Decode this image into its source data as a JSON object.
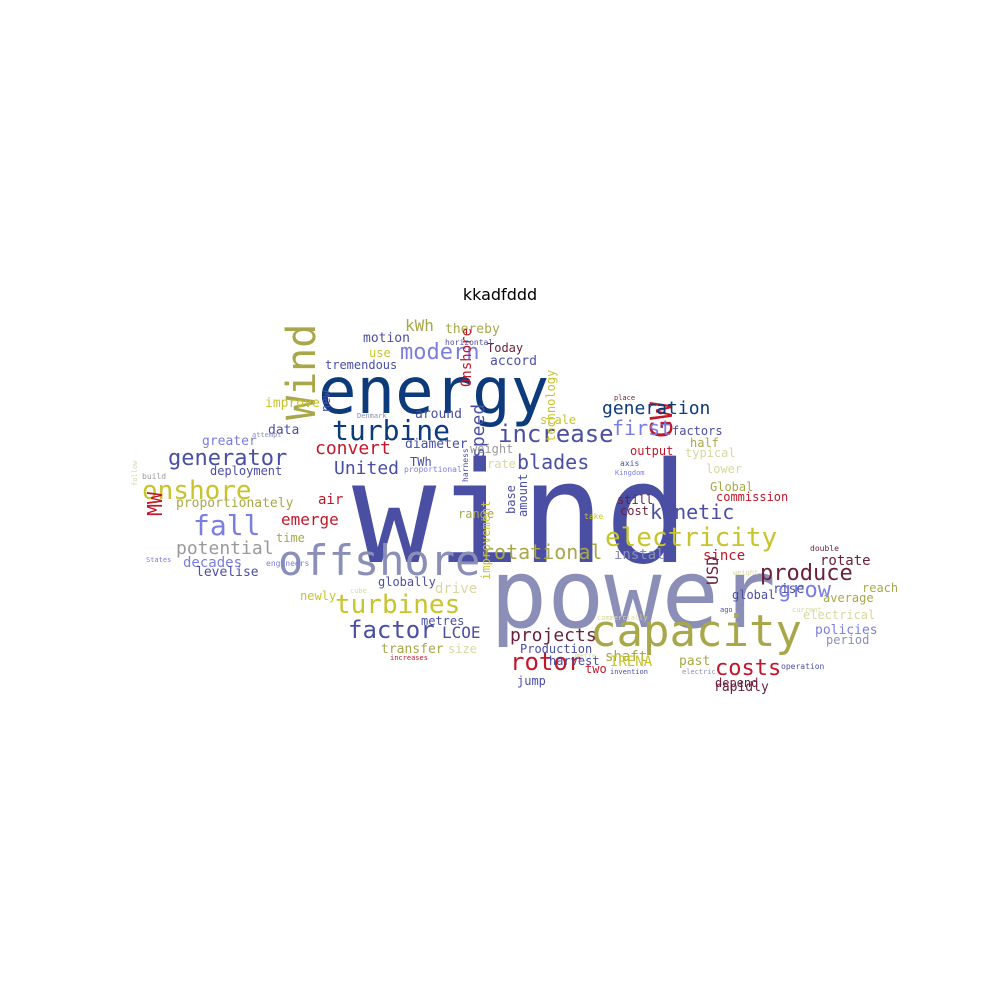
{
  "title": "kkadfddd",
  "colors": {
    "navy": "#0c3a7a",
    "indigo": "#4a4fa3",
    "olive": "#a8a84a",
    "slate": "#8b8fb8",
    "red": "#c0182a",
    "maroon": "#6a1f3a",
    "yellow": "#c8c42c",
    "periwinkle": "#7a7ee0",
    "gray": "#9a9a9a",
    "pale": "#d8d8a0"
  },
  "words": [
    {
      "text": "wind",
      "color": "indigo"
    },
    {
      "text": "power",
      "color": "slate"
    },
    {
      "text": "energy",
      "color": "navy"
    },
    {
      "text": "capacity",
      "color": "olive"
    },
    {
      "text": "offshore",
      "color": "slate"
    },
    {
      "text": "Wind",
      "color": "olive"
    },
    {
      "text": "turbine",
      "color": "navy"
    },
    {
      "text": "electricity",
      "color": "yellow"
    },
    {
      "text": "turbines",
      "color": "yellow"
    },
    {
      "text": "GW",
      "color": "red"
    },
    {
      "text": "onshore",
      "color": "yellow"
    },
    {
      "text": "fall",
      "color": "periwinkle"
    },
    {
      "text": "increase",
      "color": "indigo"
    },
    {
      "text": "modern",
      "color": "periwinkle"
    },
    {
      "text": "produce",
      "color": "maroon"
    },
    {
      "text": "rotor",
      "color": "red"
    },
    {
      "text": "factor",
      "color": "indigo"
    },
    {
      "text": "costs",
      "color": "red"
    },
    {
      "text": "generator",
      "color": "indigo"
    },
    {
      "text": "rotational",
      "color": "olive"
    },
    {
      "text": "blades",
      "color": "indigo"
    },
    {
      "text": "grow",
      "color": "periwinkle"
    },
    {
      "text": "kinetic",
      "color": "indigo"
    },
    {
      "text": "projects",
      "color": "maroon"
    },
    {
      "text": "convert",
      "color": "red"
    },
    {
      "text": "generation",
      "color": "navy"
    },
    {
      "text": "potential",
      "color": "gray"
    },
    {
      "text": "speed",
      "color": "indigo"
    },
    {
      "text": "United",
      "color": "indigo"
    },
    {
      "text": "first",
      "color": "periwinkle"
    },
    {
      "text": "emerge",
      "color": "red"
    },
    {
      "text": "kWh",
      "color": "olive"
    },
    {
      "text": "MW",
      "color": "red"
    },
    {
      "text": "LCOE",
      "color": "indigo"
    },
    {
      "text": "USD",
      "color": "maroon"
    },
    {
      "text": "shaft",
      "color": "olive"
    },
    {
      "text": "instal",
      "color": "slate"
    },
    {
      "text": "since",
      "color": "red"
    },
    {
      "text": "rotate",
      "color": "maroon"
    },
    {
      "text": "air",
      "color": "red"
    },
    {
      "text": "decades",
      "color": "periwinkle"
    },
    {
      "text": "levelise",
      "color": "indigo"
    },
    {
      "text": "thereby",
      "color": "olive"
    },
    {
      "text": "motion",
      "color": "indigo"
    },
    {
      "text": "accord",
      "color": "indigo"
    },
    {
      "text": "use",
      "color": "yellow"
    },
    {
      "text": "tremendous",
      "color": "indigo"
    },
    {
      "text": "Today",
      "color": "maroon"
    },
    {
      "text": "horizontal",
      "color": "indigo"
    },
    {
      "text": "improve",
      "color": "yellow"
    },
    {
      "text": "new",
      "color": "indigo"
    },
    {
      "text": "around",
      "color": "indigo"
    },
    {
      "text": "Onshore",
      "color": "red"
    },
    {
      "text": "scale",
      "color": "yellow"
    },
    {
      "text": "data",
      "color": "indigo"
    },
    {
      "text": "greater",
      "color": "periwinkle"
    },
    {
      "text": "diameter",
      "color": "indigo"
    },
    {
      "text": "weight",
      "color": "gray"
    },
    {
      "text": "rate",
      "color": "pale"
    },
    {
      "text": "TWh",
      "color": "indigo"
    },
    {
      "text": "proportional",
      "color": "periwinkle"
    },
    {
      "text": "deployment",
      "color": "indigo"
    },
    {
      "text": "proportionately",
      "color": "olive"
    },
    {
      "text": "time",
      "color": "olive"
    },
    {
      "text": "range",
      "color": "olive"
    },
    {
      "text": "technology",
      "color": "yellow"
    },
    {
      "text": "base",
      "color": "indigo"
    },
    {
      "text": "amount",
      "color": "indigo"
    },
    {
      "text": "factors",
      "color": "indigo"
    },
    {
      "text": "half",
      "color": "olive"
    },
    {
      "text": "typical",
      "color": "pale"
    },
    {
      "text": "output",
      "color": "red"
    },
    {
      "text": "axis",
      "color": "indigo"
    },
    {
      "text": "Kingdom",
      "color": "periwinkle"
    },
    {
      "text": "lower",
      "color": "pale"
    },
    {
      "text": "Global",
      "color": "olive"
    },
    {
      "text": "commission",
      "color": "red"
    },
    {
      "text": "still",
      "color": "maroon"
    },
    {
      "text": "cost",
      "color": "maroon"
    },
    {
      "text": "take",
      "color": "yellow"
    },
    {
      "text": "harness",
      "color": "indigo"
    },
    {
      "text": "globally",
      "color": "indigo"
    },
    {
      "text": "drive",
      "color": "pale"
    },
    {
      "text": "newly",
      "color": "yellow"
    },
    {
      "text": "improvement",
      "color": "yellow"
    },
    {
      "text": "metres",
      "color": "indigo"
    },
    {
      "text": "transfer",
      "color": "olive"
    },
    {
      "text": "size",
      "color": "pale"
    },
    {
      "text": "Production",
      "color": "indigo"
    },
    {
      "text": "harvest",
      "color": "indigo"
    },
    {
      "text": "jump",
      "color": "indigo"
    },
    {
      "text": "two",
      "color": "red"
    },
    {
      "text": "IRENA",
      "color": "yellow"
    },
    {
      "text": "past",
      "color": "olive"
    },
    {
      "text": "depend",
      "color": "maroon"
    },
    {
      "text": "rapidly",
      "color": "maroon"
    },
    {
      "text": "rise",
      "color": "indigo"
    },
    {
      "text": "global",
      "color": "indigo"
    },
    {
      "text": "reach",
      "color": "olive"
    },
    {
      "text": "average",
      "color": "olive"
    },
    {
      "text": "electrical",
      "color": "pale"
    },
    {
      "text": "policies",
      "color": "periwinkle"
    },
    {
      "text": "period",
      "color": "slate"
    },
    {
      "text": "double",
      "color": "maroon"
    },
    {
      "text": "weight",
      "color": "pale"
    },
    {
      "text": "operation",
      "color": "indigo"
    },
    {
      "text": "electric",
      "color": "slate"
    },
    {
      "text": "invention",
      "color": "indigo"
    },
    {
      "text": "increases",
      "color": "red"
    },
    {
      "text": "metre",
      "color": "pale"
    },
    {
      "text": "States",
      "color": "periwinkle"
    },
    {
      "text": "follow",
      "color": "pale"
    },
    {
      "text": "build",
      "color": "gray"
    },
    {
      "text": "engineers",
      "color": "periwinkle"
    },
    {
      "text": "attempt",
      "color": "slate"
    },
    {
      "text": "Denmark",
      "color": "slate"
    },
    {
      "text": "place",
      "color": "maroon"
    },
    {
      "text": "commercially",
      "color": "pale"
    },
    {
      "text": "current",
      "color": "pale"
    },
    {
      "text": "cube",
      "color": "pale"
    },
    {
      "text": "ago",
      "color": "indigo"
    }
  ]
}
